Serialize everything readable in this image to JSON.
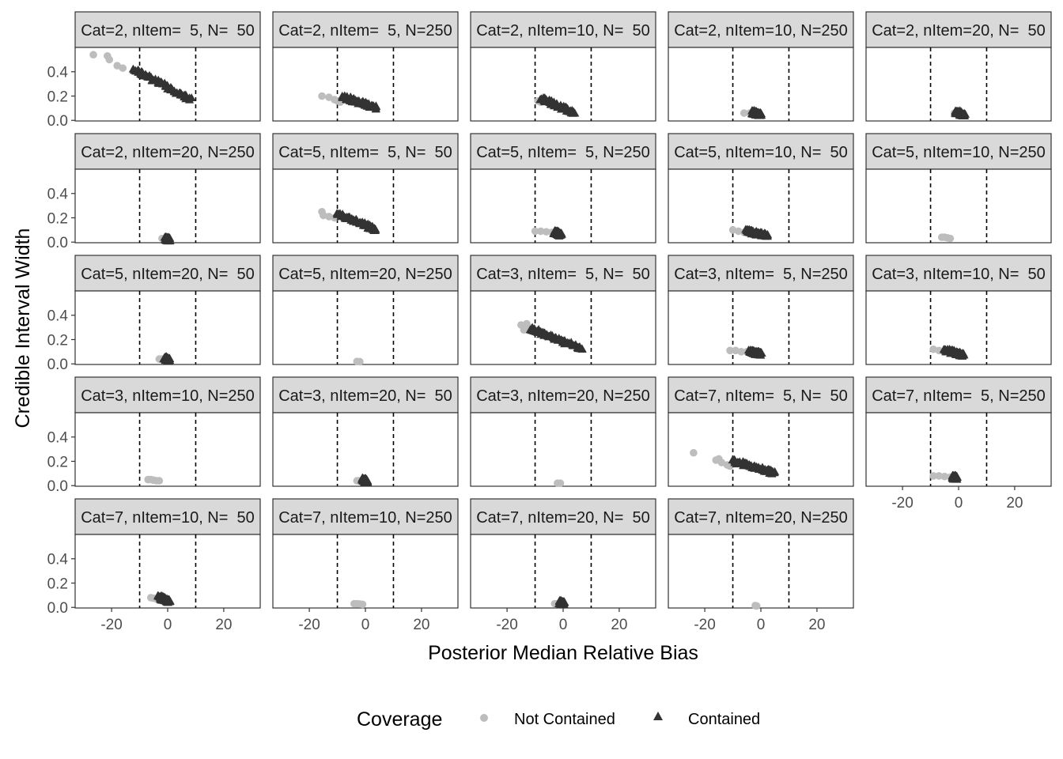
{
  "chart_data": {
    "type": "scatter",
    "xlabel": "Posterior Median Relative Bias",
    "ylabel": "Credible Interval Width",
    "xlim": [
      -33,
      33
    ],
    "ylim": [
      -0.005,
      0.6
    ],
    "x_ticks": [
      -20,
      0,
      20
    ],
    "x_tick_labels": [
      "-20",
      "0",
      "20"
    ],
    "y_ticks": [
      0.0,
      0.2,
      0.4
    ],
    "y_tick_labels": [
      "0.0",
      "0.2",
      "0.4"
    ],
    "reference_lines_x": [
      -10,
      10
    ],
    "grid": false,
    "legend": {
      "title": "Coverage",
      "placement": "bottom",
      "entries": [
        {
          "label": "Not Contained",
          "shape": "circle",
          "color": "#bdbdbd"
        },
        {
          "label": "Contained",
          "shape": "triangle",
          "color": "#333333"
        }
      ]
    },
    "panels": [
      {
        "strip": "Cat=2, nItem=  5, N=  50",
        "not_contained": [
          [
            -26.5,
            0.54
          ],
          [
            -21.5,
            0.53
          ],
          [
            -20.8,
            0.5
          ],
          [
            -18,
            0.45
          ],
          [
            -16,
            0.43
          ]
        ],
        "contained": {
          "x_range": [
            -12,
            8
          ],
          "y_range": [
            0.42,
            0.17
          ]
        }
      },
      {
        "strip": "Cat=2, nItem=  5, N=250",
        "not_contained": [
          [
            -15.5,
            0.2
          ],
          [
            -13,
            0.19
          ],
          [
            -11,
            0.17
          ],
          [
            -10,
            0.16
          ],
          [
            -9,
            0.15
          ]
        ],
        "contained": {
          "x_range": [
            -8,
            4
          ],
          "y_range": [
            0.19,
            0.1
          ]
        }
      },
      {
        "strip": "Cat=2, nItem=10, N=  50",
        "not_contained": [
          [
            -9,
            0.16
          ],
          [
            -8,
            0.15
          ]
        ],
        "contained": {
          "x_range": [
            -8,
            4
          ],
          "y_range": [
            0.18,
            0.06
          ]
        }
      },
      {
        "strip": "Cat=2, nItem=10, N=250",
        "not_contained": [
          [
            -6,
            0.06
          ],
          [
            -4,
            0.06
          ],
          [
            -2,
            0.055
          ]
        ],
        "contained": {
          "x_range": [
            -3,
            0
          ],
          "y_range": [
            0.065,
            0.045
          ]
        }
      },
      {
        "strip": "Cat=2, nItem=20, N=  50",
        "not_contained": [
          [
            -1.5,
            0.06
          ]
        ],
        "contained": {
          "x_range": [
            -1,
            2
          ],
          "y_range": [
            0.07,
            0.04
          ]
        }
      },
      {
        "strip": "Cat=2, nItem=20, N=250",
        "not_contained": [
          [
            -2,
            0.03
          ],
          [
            -1,
            0.025
          ]
        ],
        "contained": {
          "x_range": [
            -0.5,
            0.5
          ],
          "y_range": [
            0.025,
            0.02
          ]
        }
      },
      {
        "strip": "Cat=5, nItem=  5, N=  50",
        "not_contained": [
          [
            -15.5,
            0.25
          ],
          [
            -15,
            0.22
          ],
          [
            -13,
            0.21
          ],
          [
            -11,
            0.2
          ]
        ],
        "contained": {
          "x_range": [
            -10,
            4
          ],
          "y_range": [
            0.23,
            0.1
          ]
        }
      },
      {
        "strip": "Cat=5, nItem=  5, N=250",
        "not_contained": [
          [
            -10,
            0.09
          ],
          [
            -8,
            0.09
          ],
          [
            -6,
            0.085
          ],
          [
            -4,
            0.08
          ]
        ],
        "contained": {
          "x_range": [
            -3,
            -1
          ],
          "y_range": [
            0.08,
            0.06
          ]
        }
      },
      {
        "strip": "Cat=5, nItem=10, N=  50",
        "not_contained": [
          [
            -10,
            0.1
          ],
          [
            -8,
            0.09
          ],
          [
            -6,
            0.08
          ],
          [
            -4,
            0.075
          ]
        ],
        "contained": {
          "x_range": [
            -5,
            2
          ],
          "y_range": [
            0.09,
            0.05
          ]
        }
      },
      {
        "strip": "Cat=5, nItem=10, N=250",
        "not_contained": [
          [
            -6,
            0.04
          ],
          [
            -5,
            0.04
          ],
          [
            -4,
            0.035
          ],
          [
            -3,
            0.03
          ]
        ],
        "contained": {
          "x_range": [],
          "y_range": []
        }
      },
      {
        "strip": "Cat=5, nItem=20, N=  50",
        "not_contained": [
          [
            -3,
            0.04
          ],
          [
            -2,
            0.04
          ]
        ],
        "contained": {
          "x_range": [
            -1,
            0.5
          ],
          "y_range": [
            0.045,
            0.03
          ]
        }
      },
      {
        "strip": "Cat=5, nItem=20, N=250",
        "not_contained": [
          [
            -3,
            0.02
          ],
          [
            -2,
            0.018
          ]
        ],
        "contained": {
          "x_range": [],
          "y_range": []
        }
      },
      {
        "strip": "Cat=3, nItem=  5, N=  50",
        "not_contained": [
          [
            -15,
            0.32
          ],
          [
            -14,
            0.28
          ],
          [
            -13,
            0.33
          ],
          [
            -12,
            0.3
          ],
          [
            -11,
            0.28
          ]
        ],
        "contained": {
          "x_range": [
            -12,
            7
          ],
          "y_range": [
            0.29,
            0.12
          ]
        }
      },
      {
        "strip": "Cat=3, nItem=  5, N=250",
        "not_contained": [
          [
            -11,
            0.11
          ],
          [
            -9,
            0.11
          ],
          [
            -7,
            0.1
          ],
          [
            -5,
            0.1
          ],
          [
            -3,
            0.09
          ]
        ],
        "contained": {
          "x_range": [
            -4,
            0
          ],
          "y_range": [
            0.1,
            0.08
          ]
        }
      },
      {
        "strip": "Cat=3, nItem=10, N=  50",
        "not_contained": [
          [
            -9,
            0.12
          ],
          [
            -7,
            0.11
          ],
          [
            -5,
            0.1
          ],
          [
            -4,
            0.1
          ]
        ],
        "contained": {
          "x_range": [
            -5,
            2
          ],
          "y_range": [
            0.11,
            0.07
          ]
        }
      },
      {
        "strip": "Cat=3, nItem=10, N=250",
        "not_contained": [
          [
            -7,
            0.05
          ],
          [
            -6,
            0.05
          ],
          [
            -5,
            0.045
          ],
          [
            -4,
            0.04
          ],
          [
            -3,
            0.04
          ]
        ],
        "contained": {
          "x_range": [],
          "y_range": []
        }
      },
      {
        "strip": "Cat=3, nItem=20, N=  50",
        "not_contained": [
          [
            -3,
            0.04
          ],
          [
            -2,
            0.04
          ]
        ],
        "contained": {
          "x_range": [
            -1,
            0.5
          ],
          "y_range": [
            0.05,
            0.03
          ]
        }
      },
      {
        "strip": "Cat=3, nItem=20, N=250",
        "not_contained": [
          [
            -2,
            0.02
          ],
          [
            -1,
            0.02
          ]
        ],
        "contained": {
          "x_range": [],
          "y_range": []
        }
      },
      {
        "strip": "Cat=7, nItem=  5, N=  50",
        "not_contained": [
          [
            -24,
            0.27
          ],
          [
            -16,
            0.21
          ],
          [
            -15,
            0.22
          ],
          [
            -14,
            0.19
          ],
          [
            -12,
            0.17
          ],
          [
            -11,
            0.16
          ]
        ],
        "contained": {
          "x_range": [
            -10,
            5
          ],
          "y_range": [
            0.2,
            0.1
          ]
        }
      },
      {
        "strip": "Cat=7, nItem=  5, N=250",
        "not_contained": [
          [
            -9,
            0.08
          ],
          [
            -7,
            0.08
          ],
          [
            -5,
            0.075
          ],
          [
            -3,
            0.07
          ]
        ],
        "contained": {
          "x_range": [
            -2,
            -1
          ],
          "y_range": [
            0.07,
            0.06
          ]
        }
      },
      {
        "strip": "Cat=7, nItem=10, N=  50",
        "not_contained": [
          [
            -6,
            0.08
          ],
          [
            -5,
            0.075
          ],
          [
            -4,
            0.07
          ]
        ],
        "contained": {
          "x_range": [
            -3,
            0.5
          ],
          "y_range": [
            0.08,
            0.05
          ]
        }
      },
      {
        "strip": "Cat=7, nItem=10, N=250",
        "not_contained": [
          [
            -4,
            0.03
          ],
          [
            -3,
            0.03
          ],
          [
            -2,
            0.028
          ],
          [
            -1,
            0.025
          ]
        ],
        "contained": {
          "x_range": [],
          "y_range": []
        }
      },
      {
        "strip": "Cat=7, nItem=20, N=  50",
        "not_contained": [
          [
            -3,
            0.03
          ],
          [
            -2,
            0.03
          ]
        ],
        "contained": {
          "x_range": [
            -1,
            0
          ],
          "y_range": [
            0.04,
            0.03
          ]
        }
      },
      {
        "strip": "Cat=7, nItem=20, N=250",
        "not_contained": [
          [
            -2,
            0.015
          ],
          [
            -1.5,
            0.012
          ]
        ],
        "contained": {
          "x_range": [],
          "y_range": []
        }
      }
    ]
  }
}
